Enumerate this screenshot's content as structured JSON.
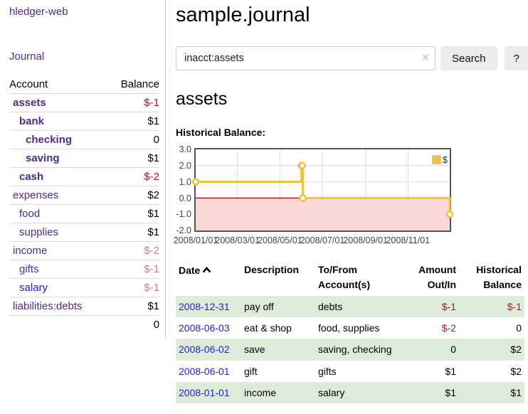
{
  "colors": {
    "purple": "#4f2d86",
    "link_blue": "#2323cc",
    "neg_strong": "#a01c28",
    "neg_soft": "#c28484",
    "row_green": "#ddecd8",
    "line_gold": "#edc240",
    "neg_fill": "#fbd7d7",
    "zero_line": "#a40000",
    "plot_border": "#545454",
    "grid": "#dcdcdc",
    "button_bg": "#ececec",
    "input_border": "#cccccc",
    "clear_icon": "#cfc6e8",
    "divider": "#cccccc",
    "row_border": "#dddddd",
    "total_border": "#333333",
    "tick_text": "#444444"
  },
  "sidebar": {
    "brand": "hledger-web",
    "journal_label": "Journal",
    "accounts": {
      "header_account": "Account",
      "header_balance": "Balance",
      "rows": [
        {
          "name": "assets",
          "balance": "$-1",
          "depth": 1,
          "bold": true,
          "balance_color": "neg-strong"
        },
        {
          "name": "bank",
          "balance": "$1",
          "depth": 2,
          "bold": true,
          "balance_color": "pos"
        },
        {
          "name": "checking",
          "balance": "0",
          "depth": 3,
          "bold": true,
          "balance_color": "pos"
        },
        {
          "name": "saving",
          "balance": "$1",
          "depth": 3,
          "bold": true,
          "balance_color": "pos"
        },
        {
          "name": "cash",
          "balance": "$-2",
          "depth": 2,
          "bold": true,
          "balance_color": "neg-strong"
        },
        {
          "name": "expenses",
          "balance": "$2",
          "depth": 1,
          "bold": false,
          "balance_color": "pos"
        },
        {
          "name": "food",
          "balance": "$1",
          "depth": 2,
          "bold": false,
          "balance_color": "pos"
        },
        {
          "name": "supplies",
          "balance": "$1",
          "depth": 2,
          "bold": false,
          "balance_color": "pos"
        },
        {
          "name": "income",
          "balance": "$-2",
          "depth": 1,
          "bold": false,
          "balance_color": "neg-soft"
        },
        {
          "name": "gifts",
          "balance": "$-1",
          "depth": 2,
          "bold": false,
          "balance_color": "neg-soft"
        },
        {
          "name": "salary",
          "balance": "$-1",
          "depth": 2,
          "bold": false,
          "balance_color": "neg-soft"
        },
        {
          "name": "liabilities:debts",
          "balance": "$1",
          "depth": 1,
          "bold": false,
          "balance_color": "pos"
        }
      ],
      "total": "0"
    }
  },
  "main": {
    "title": "sample.journal",
    "search": {
      "value": "inacct:assets",
      "clear_glyph": "×",
      "button_label": "Search",
      "help_label": "?"
    },
    "account_heading": "assets",
    "chart_label": "Historical Balance:"
  },
  "chart_data": {
    "type": "line",
    "step": true,
    "title": "Historical Balance",
    "series": [
      {
        "name": "$",
        "color": "#edc240",
        "points": [
          [
            "2008-01-01",
            1
          ],
          [
            "2008-06-01",
            2
          ],
          [
            "2008-06-02",
            2
          ],
          [
            "2008-06-03",
            0
          ],
          [
            "2008-12-31",
            -1
          ]
        ]
      }
    ],
    "x_ticks": [
      "2008/01/01",
      "2008/03/01",
      "2008/05/01",
      "2008/07/01",
      "2008/09/01",
      "2008/11/01"
    ],
    "y_ticks": [
      "3.0",
      "2.0",
      "1.0",
      "0.0",
      "-1.0",
      "-2.0"
    ],
    "xlim": [
      "2008-01-01",
      "2008-12-31"
    ],
    "ylim": [
      -2,
      3
    ],
    "grid": true,
    "legend_position": "top-right",
    "negative_region": true
  },
  "register": {
    "headers": {
      "date": "Date",
      "description": "Description",
      "accounts": "To/From Account(s)",
      "amount": "Amount Out/In",
      "balance": "Historical Balance"
    },
    "rows": [
      {
        "date": "2008-12-31",
        "description": "pay off",
        "accounts": "debts",
        "amount": "$-1",
        "balance": "$-1"
      },
      {
        "date": "2008-06-03",
        "description": "eat & shop",
        "accounts": "food, supplies",
        "amount": "$-2",
        "balance": "0"
      },
      {
        "date": "2008-06-02",
        "description": "save",
        "accounts": "saving, checking",
        "amount": "0",
        "balance": "$2"
      },
      {
        "date": "2008-06-01",
        "description": "gift",
        "accounts": "gifts",
        "amount": "$1",
        "balance": "$2"
      },
      {
        "date": "2008-01-01",
        "description": "income",
        "accounts": "salary",
        "amount": "$1",
        "balance": "$1"
      }
    ]
  }
}
